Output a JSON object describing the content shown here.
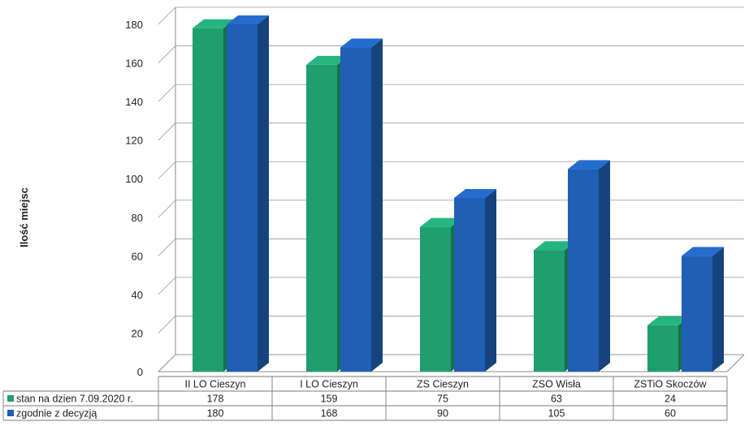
{
  "chart_data": {
    "type": "bar",
    "ylabel": "Ilość miejsc",
    "ylim": [
      0,
      180
    ],
    "yticks": [
      0,
      20,
      40,
      60,
      80,
      100,
      120,
      140,
      160,
      180
    ],
    "categories": [
      "II LO Cieszyn",
      "I LO Cieszyn",
      "ZS Cieszyn",
      "ZSO Wisła",
      "ZSTiO Skoczów"
    ],
    "series": [
      {
        "name": "stan na dzien 7.09.2020 r.",
        "values": [
          178,
          159,
          75,
          63,
          24
        ],
        "color": "#1f9e6e"
      },
      {
        "name": "zgodnie z decyzją",
        "values": [
          180,
          168,
          90,
          105,
          60
        ],
        "color": "#1f5fb4"
      }
    ],
    "grid": true,
    "legend": "bottom-left data table",
    "style": "3d-clustered-bar"
  }
}
